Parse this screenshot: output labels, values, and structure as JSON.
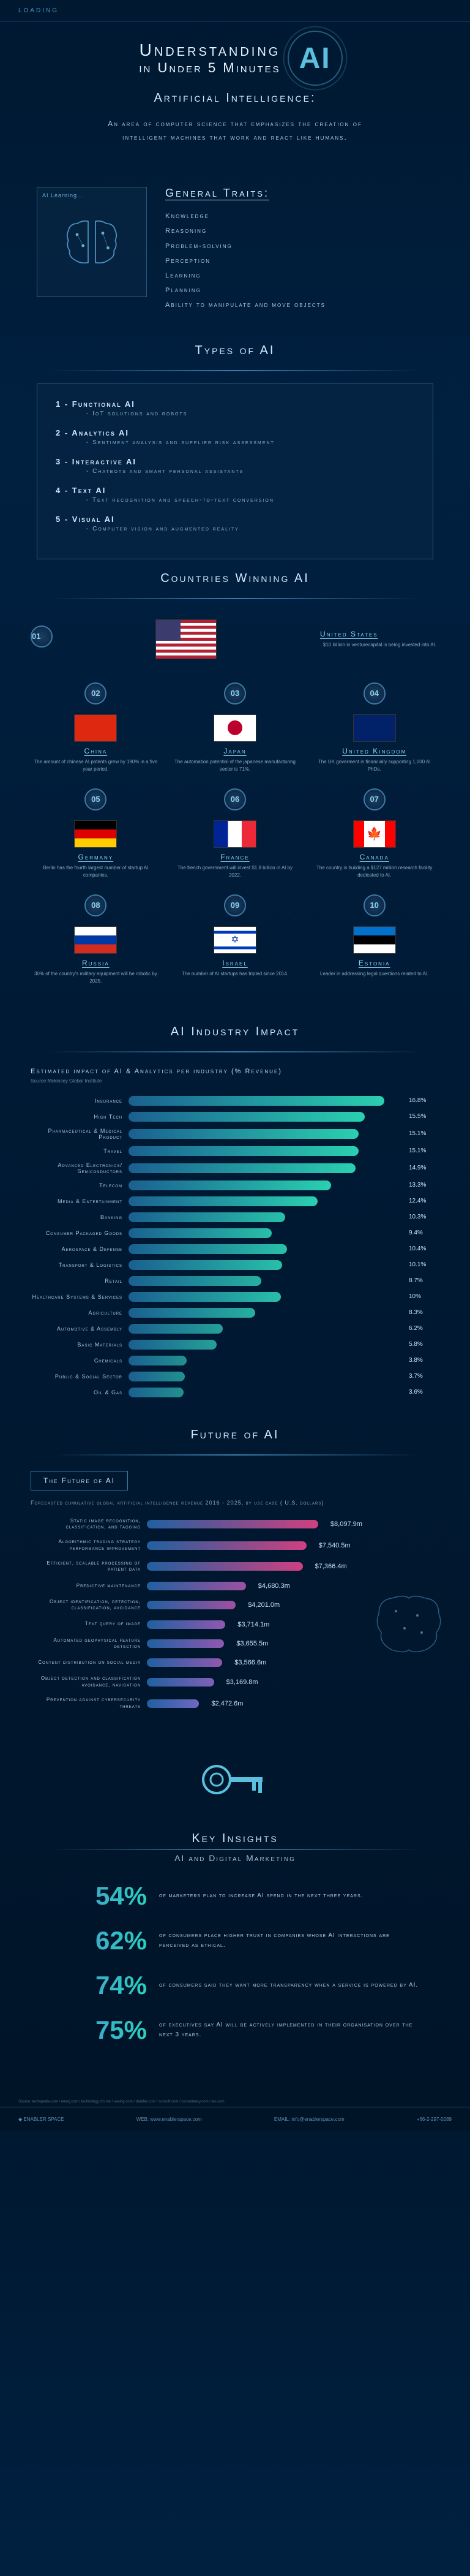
{
  "loading": "LOADING",
  "title_line1": "Understanding",
  "title_line2": "in Under 5 Minutes",
  "ai_badge": "AI",
  "definition_header": "Artificial Intelligence:",
  "definition_text": "An area of computer science that emphasizes the creation of intelligent machines that work and react like humans.",
  "brain_label": "AI Learning...",
  "traits_title": "General Traits:",
  "traits": [
    "Knowledge",
    "Reasoning",
    "Problem-solving",
    "Perception",
    "Learning",
    "Planning",
    "Ability to manipulate and move objects"
  ],
  "types_header": "Types of AI",
  "types": [
    {
      "num": "1",
      "name": "Functional AI",
      "desc": "- IoT solutions and robots"
    },
    {
      "num": "2",
      "name": "Analytics AI",
      "desc": "- Sentiment analysis and supplier risk assessment"
    },
    {
      "num": "3",
      "name": "Interactive AI",
      "desc": "- Chatbots and smart personal assistants"
    },
    {
      "num": "4",
      "name": "Text AI",
      "desc": "- Text recognition and speech-to-text conversion"
    },
    {
      "num": "5",
      "name": "Visual AI",
      "desc": "- Computer vision and augmented reality"
    }
  ],
  "countries_header": "Countries Winning AI",
  "country_featured": {
    "num": "01",
    "name": "United States",
    "desc": "$10 billion in venturecapital is being invested into AI."
  },
  "countries": [
    {
      "num": "02",
      "name": "China",
      "desc": "The amount of chinese AI patents grew by 190% in a five year period."
    },
    {
      "num": "03",
      "name": "Japan",
      "desc": "The automation potential of the japanese manufacturing sector is 71%."
    },
    {
      "num": "04",
      "name": "United Kingdom",
      "desc": "The UK goverment is financially supporting 1,000 AI PhDs."
    },
    {
      "num": "05",
      "name": "Germany",
      "desc": "Berlin has the fourth largest number of startup AI companies."
    },
    {
      "num": "06",
      "name": "France",
      "desc": "The french government will invest $1.8 billion in AI by 2022."
    },
    {
      "num": "07",
      "name": "Canada",
      "desc": "The country is building a $127 million research facility dedicated to AI."
    },
    {
      "num": "08",
      "name": "Russia",
      "desc": "30% of the country's military equipment will be robotic by 2025."
    },
    {
      "num": "09",
      "name": "Israel",
      "desc": "The number of AI startups has tripled since 2014."
    },
    {
      "num": "10",
      "name": "Estonia",
      "desc": "Leader in addressing legal questions related to AI."
    }
  ],
  "flags": {
    "us": {
      "bg": "linear-gradient(180deg, #b22234 0%, #b22234 7.7%, #fff 7.7%, #fff 15.4%, #b22234 15.4%, #b22234 23%, #fff 23%, #fff 30.7%, #b22234 30.7%, #b22234 38.4%, #fff 38.4%, #fff 46.1%, #b22234 46.1%, #b22234 53.8%, #fff 53.8%, #fff 61.5%, #b22234 61.5%, #b22234 69.2%, #fff 69.2%, #fff 76.9%, #b22234 76.9%, #b22234 84.6%, #fff 84.6%, #fff 92.3%, #b22234 92.3%)",
      "canton": "#3c3b6e"
    },
    "china": "#de2910",
    "japan": "#fff",
    "uk": "#012169",
    "germany": "linear-gradient(180deg, #000 33%, #dd0000 33%, #dd0000 66%, #ffce00 66%)",
    "france": "linear-gradient(90deg, #002395 33%, #fff 33%, #fff 66%, #ed2939 66%)",
    "canada": "linear-gradient(90deg, #ff0000 25%, #fff 25%, #fff 75%, #ff0000 75%)",
    "russia": "linear-gradient(180deg, #fff 33%, #0039a6 33%, #0039a6 66%, #d52b1e 66%)",
    "israel": "linear-gradient(180deg, #fff 15%, #0038b8 15%, #0038b8 25%, #fff 25%, #fff 75%, #0038b8 75%, #0038b8 85%, #fff 85%)",
    "estonia": "linear-gradient(180deg, #0072ce 33%, #000 33%, #000 66%, #fff 66%)"
  },
  "impact_header": "AI Industry Impact",
  "impact_title": "Estimated impact of AI & Analytics per industry (% Revenue)",
  "impact_source": "Source:Mckinsey Global Institute",
  "impact_max": 18,
  "impact_bars": [
    {
      "label": "Insurance",
      "value": 16.8,
      "color": "linear-gradient(90deg, #1a6090, #2ad0b0)"
    },
    {
      "label": "High Tech",
      "value": 15.5,
      "color": "linear-gradient(90deg, #1a6090, #2ad0b0)"
    },
    {
      "label": "Pharmaceutical & Medical Product",
      "value": 15.1,
      "color": "linear-gradient(90deg, #1a6090, #2ad0b0)"
    },
    {
      "label": "Travel",
      "value": 15.1,
      "color": "linear-gradient(90deg, #1a6090, #2ad0b0)"
    },
    {
      "label": "Advanced Electronics/ Semiconductors",
      "value": 14.9,
      "color": "linear-gradient(90deg, #1a6090, #2ad0b0)"
    },
    {
      "label": "Telecom",
      "value": 13.3,
      "color": "linear-gradient(90deg, #1a6090, #2ad0b0)"
    },
    {
      "label": "Media & Entertainment",
      "value": 12.4,
      "color": "linear-gradient(90deg, #1a6090, #2ad0b0)"
    },
    {
      "label": "Banking",
      "value": 10.3,
      "color": "linear-gradient(90deg, #1a6090, #28c0a8)"
    },
    {
      "label": "Consumer Packaged Goods",
      "value": 9.4,
      "color": "linear-gradient(90deg, #1a6090, #28c0a8)"
    },
    {
      "label": "Aerospace & Defense",
      "value": 10.4,
      "color": "linear-gradient(90deg, #1a6090, #28c0a8)"
    },
    {
      "label": "Transport & Logistics",
      "value": 10.1,
      "color": "linear-gradient(90deg, #1a6090, #28c0a8)"
    },
    {
      "label": "Retail",
      "value": 8.7,
      "color": "linear-gradient(90deg, #1a6090, #26b0a0)"
    },
    {
      "label": "Healthcare Systems & Services",
      "value": 10.0,
      "color": "linear-gradient(90deg, #1a6090, #28c0a8)"
    },
    {
      "label": "Agriculture",
      "value": 8.3,
      "color": "linear-gradient(90deg, #1a6090, #26b0a0)"
    },
    {
      "label": "Automotive & Assembly",
      "value": 6.2,
      "color": "linear-gradient(90deg, #1a6090, #24a098)"
    },
    {
      "label": "Basic Materials",
      "value": 5.8,
      "color": "linear-gradient(90deg, #1a6090, #24a098)"
    },
    {
      "label": "Chemicals",
      "value": 3.8,
      "color": "linear-gradient(90deg, #1a6090, #229090)"
    },
    {
      "label": "Public & Social Sector",
      "value": 3.7,
      "color": "linear-gradient(90deg, #1a6090, #229090)"
    },
    {
      "label": "Oil & Gas",
      "value": 3.6,
      "color": "linear-gradient(90deg, #1a6090, #229090)"
    }
  ],
  "future_header": "Future of AI",
  "future_box": "The Future of AI",
  "future_subtitle": "Forecasted cumulative global artificial intelligence revenue 2016 - 2025, by use case ( U.S. dollars)",
  "future_max": 8100,
  "future_bars": [
    {
      "label": "Static image recognition, classification, and tagging",
      "value": "$8,097.9m",
      "width": 8097.9,
      "color": "linear-gradient(90deg, #2060a0, #d04080)"
    },
    {
      "label": "Algorithmic trading strategy performance improvement",
      "value": "$7,540.5m",
      "width": 7540.5,
      "color": "linear-gradient(90deg, #2060a0, #d04080)"
    },
    {
      "label": "Efficient, scalable processing of patient data",
      "value": "$7,366.4m",
      "width": 7366.4,
      "color": "linear-gradient(90deg, #2060a0, #d04080)"
    },
    {
      "label": "Predictive maintenance",
      "value": "$4,680.3m",
      "width": 4680.3,
      "color": "linear-gradient(90deg, #2060a0, #a050a0)"
    },
    {
      "label": "Object identification, detection, classification, avoidance",
      "value": "$4,201.0m",
      "width": 4201.0,
      "color": "linear-gradient(90deg, #2060a0, #a050a0)"
    },
    {
      "label": "Text query of image",
      "value": "$3,714.1m",
      "width": 3714.1,
      "color": "linear-gradient(90deg, #2060a0, #9058b0)"
    },
    {
      "label": "Automated geophysical feature detection",
      "value": "$3,655.5m",
      "width": 3655.5,
      "color": "linear-gradient(90deg, #2060a0, #9058b0)"
    },
    {
      "label": "Content distribution on social media",
      "value": "$3,566.6m",
      "width": 3566.6,
      "color": "linear-gradient(90deg, #2060a0, #9058b0)"
    },
    {
      "label": "Object detection and classification avoidance, navigation",
      "value": "$3,169.8m",
      "width": 3169.8,
      "color": "linear-gradient(90deg, #2060a0, #8060b8)"
    },
    {
      "label": "Prevention against cybersecurity threats",
      "value": "$2,472.6m",
      "width": 2472.6,
      "color": "linear-gradient(90deg, #2060a0, #7068c0)"
    }
  ],
  "insights_title": "Key Insights",
  "insights_subtitle": "AI and Digital Marketing",
  "insights": [
    {
      "pct": "54%",
      "text": "of marketers plan to increase AI spend in the next three years."
    },
    {
      "pct": "62%",
      "text": "of consumers place higher trust in companies whose AI interactions are perceived as ethical."
    },
    {
      "pct": "74%",
      "text": "of consumers said they want more transparency when a service is powered by AI."
    },
    {
      "pct": "75%",
      "text": "of executives say AI will be actively implemented in their organisation over the next 3 years."
    }
  ],
  "footer_sources": "Source: techopedia.com / emerj.com / technology.cfo.me / sealog.com / datafair.com / scnsoft.com / consultancy.com / eiu.com",
  "footer_brand": "ENABLER SPACE",
  "footer_web": "WEB: www.enablerspace.com",
  "footer_email": "EMAIL: info@enablerspace.com",
  "footer_phone": "+66-2-297-0289"
}
